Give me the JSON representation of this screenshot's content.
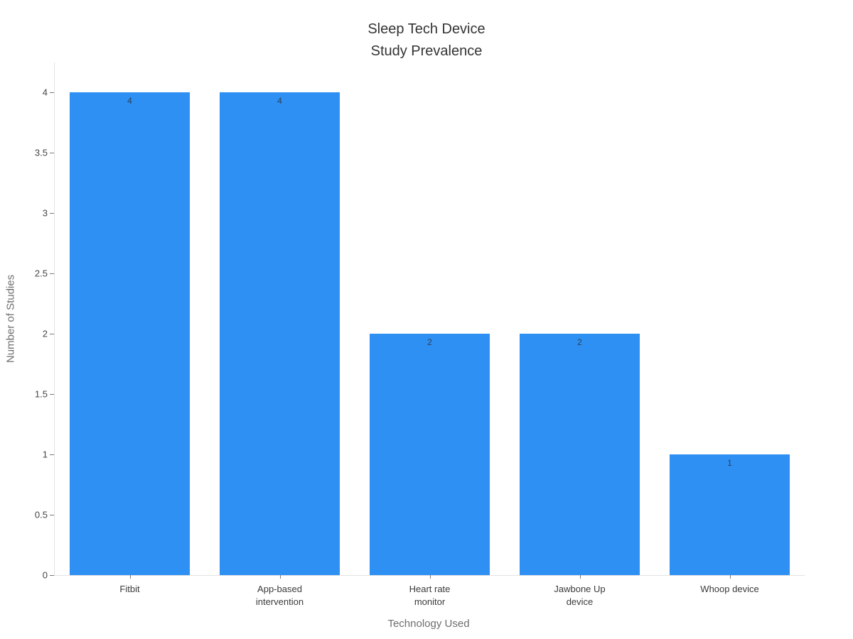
{
  "title": {
    "line1": "Sleep Tech Device",
    "line2": "Study Prevalence"
  },
  "chart_data": {
    "type": "bar",
    "title": "Sleep Tech Device Study Prevalence",
    "categories": [
      "Fitbit",
      "App-based intervention",
      "Heart rate monitor",
      "Jawbone Up device",
      "Whoop device"
    ],
    "category_lines": [
      [
        "Fitbit"
      ],
      [
        "App-based",
        "intervention"
      ],
      [
        "Heart rate",
        "monitor"
      ],
      [
        "Jawbone Up",
        "device"
      ],
      [
        "Whoop device"
      ]
    ],
    "values": [
      4,
      4,
      2,
      2,
      1
    ],
    "bar_labels": [
      "4",
      "4",
      "2",
      "2",
      "1"
    ],
    "xlabel": "Technology Used",
    "ylabel": "Number of Studies",
    "ylim": [
      0,
      4.25
    ],
    "yticks": [
      0,
      0.5,
      1,
      1.5,
      2,
      2.5,
      3,
      3.5,
      4
    ],
    "ytick_labels": [
      "0",
      "0.5",
      "1",
      "1.5",
      "2",
      "2.5",
      "3",
      "3.5",
      "4"
    ],
    "bar_color": "#2E90F3",
    "bar_label_color": "#2a3f5f",
    "axis_line_color": "#e2e2e2",
    "grid": false,
    "legend": false
  }
}
